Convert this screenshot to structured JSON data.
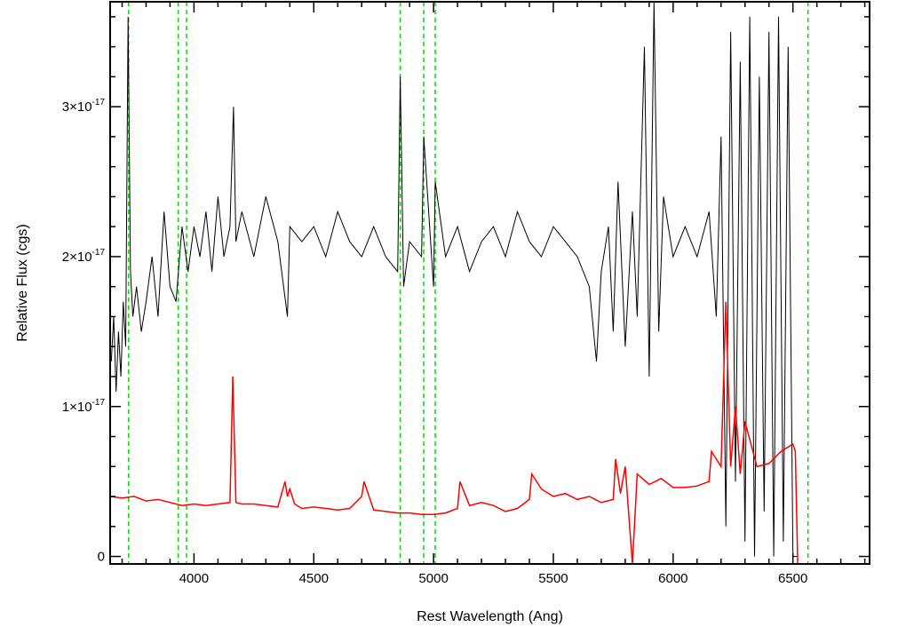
{
  "chart_data": {
    "type": "line",
    "title": "",
    "xlabel": "Rest Wavelength (Ang)",
    "ylabel": "Relative Flux (cgs)",
    "xlim": [
      3650,
      6820
    ],
    "ylim": [
      -5e-19,
      3.7e-17
    ],
    "x_ticks": [
      {
        "value": 4000,
        "label": "4000"
      },
      {
        "value": 4500,
        "label": "4500"
      },
      {
        "value": 5000,
        "label": "5000"
      },
      {
        "value": 5500,
        "label": "5500"
      },
      {
        "value": 6000,
        "label": "6000"
      },
      {
        "value": 6500,
        "label": "6500"
      }
    ],
    "y_ticks": [
      {
        "value": 0,
        "mantissa": "0",
        "exponent": ""
      },
      {
        "value": 1e-17,
        "mantissa": "1×10",
        "exponent": "-17"
      },
      {
        "value": 2e-17,
        "mantissa": "2×10",
        "exponent": "-17"
      },
      {
        "value": 3e-17,
        "mantissa": "3×10",
        "exponent": "-17"
      }
    ],
    "grid": false,
    "series": [
      {
        "color": "#000000",
        "x": [
          3655,
          3665,
          3675,
          3685,
          3695,
          3705,
          3715,
          3725,
          3735,
          3745,
          3760,
          3780,
          3800,
          3825,
          3850,
          3875,
          3900,
          3925,
          3950,
          3975,
          4000,
          4025,
          4050,
          4075,
          4100,
          4125,
          4150,
          4165,
          4175,
          4200,
          4250,
          4300,
          4350,
          4390,
          4400,
          4450,
          4500,
          4550,
          4600,
          4650,
          4700,
          4750,
          4800,
          4850,
          4861,
          4875,
          4900,
          4950,
          4959,
          5000,
          5007,
          5050,
          5100,
          5150,
          5200,
          5250,
          5300,
          5350,
          5400,
          5450,
          5500,
          5550,
          5600,
          5650,
          5680,
          5700,
          5730,
          5750,
          5770,
          5800,
          5830,
          5850,
          5880,
          5900,
          5920,
          5940,
          5960,
          6000,
          6050,
          6100,
          6150,
          6180,
          6200,
          6220,
          6240,
          6260,
          6280,
          6300,
          6320,
          6340,
          6360,
          6380,
          6400,
          6420,
          6440,
          6460,
          6480,
          6500,
          6520
        ],
        "y": [
          1.3e-17,
          1.6e-17,
          1.1e-17,
          1.5e-17,
          1.2e-17,
          1.7e-17,
          1.4e-17,
          3.6e-17,
          1.9e-17,
          1.6e-17,
          1.8e-17,
          1.5e-17,
          1.7e-17,
          2e-17,
          1.6e-17,
          2.3e-17,
          1.8e-17,
          1.7e-17,
          2.2e-17,
          1.9e-17,
          2.2e-17,
          2e-17,
          2.3e-17,
          1.9e-17,
          2.4e-17,
          2e-17,
          2.2e-17,
          3e-17,
          2.1e-17,
          2.3e-17,
          2e-17,
          2.4e-17,
          2.1e-17,
          1.6e-17,
          2.2e-17,
          2.1e-17,
          2.2e-17,
          2e-17,
          2.3e-17,
          2.1e-17,
          2e-17,
          2.2e-17,
          2e-17,
          1.9e-17,
          3.2e-17,
          1.8e-17,
          2.1e-17,
          2e-17,
          2.8e-17,
          1.8e-17,
          2.5e-17,
          2e-17,
          2.2e-17,
          1.9e-17,
          2.1e-17,
          2.2e-17,
          2e-17,
          2.3e-17,
          2.1e-17,
          2e-17,
          2.2e-17,
          2.1e-17,
          2e-17,
          1.8e-17,
          1.3e-17,
          1.9e-17,
          2.2e-17,
          1.5e-17,
          2.5e-17,
          1.4e-17,
          2.3e-17,
          1.6e-17,
          3.4e-17,
          1.2e-17,
          3.7e-17,
          1.5e-17,
          2.4e-17,
          2e-17,
          2.2e-17,
          2e-17,
          2.3e-17,
          1.6e-17,
          2.8e-17,
          2e-18,
          3.5e-17,
          5e-18,
          3.3e-17,
          1e-18,
          3.6e-17,
          0.0,
          3.2e-17,
          3e-18,
          3.5e-17,
          0.0,
          3.6e-17,
          1e-18,
          3.4e-17,
          0.0,
          0.0
        ]
      },
      {
        "color": "#ff0000",
        "x": [
          3650,
          3700,
          3750,
          3800,
          3850,
          3900,
          3950,
          4000,
          4050,
          4100,
          4150,
          4162,
          4175,
          4200,
          4250,
          4300,
          4350,
          4380,
          4390,
          4400,
          4420,
          4450,
          4500,
          4550,
          4600,
          4650,
          4700,
          4710,
          4750,
          4800,
          4850,
          4900,
          4950,
          5000,
          5050,
          5100,
          5110,
          5150,
          5200,
          5250,
          5300,
          5350,
          5400,
          5410,
          5450,
          5500,
          5550,
          5600,
          5650,
          5700,
          5750,
          5760,
          5780,
          5800,
          5830,
          5850,
          5900,
          5950,
          6000,
          6050,
          6100,
          6150,
          6160,
          6200,
          6220,
          6240,
          6260,
          6280,
          6300,
          6350,
          6400,
          6450,
          6500,
          6510,
          6520,
          6550,
          6600,
          6700,
          6820
        ],
        "y": [
          4e-18,
          3.9e-18,
          4e-18,
          3.7e-18,
          3.8e-18,
          3.6e-18,
          3.4e-18,
          3.5e-18,
          3.4e-18,
          3.5e-18,
          3.6e-18,
          1.2e-17,
          3.6e-18,
          3.5e-18,
          3.5e-18,
          3.4e-18,
          3.3e-18,
          5e-18,
          4e-18,
          4.5e-18,
          3.5e-18,
          3.2e-18,
          3.3e-18,
          3.2e-18,
          3.1e-18,
          3.2e-18,
          4e-18,
          5e-18,
          3.1e-18,
          3e-18,
          2.9e-18,
          2.9e-18,
          2.8e-18,
          2.8e-18,
          2.9e-18,
          3.2e-18,
          5e-18,
          3.4e-18,
          3.6e-18,
          3.4e-18,
          3e-18,
          3.2e-18,
          3.8e-18,
          5.5e-18,
          4.5e-18,
          4e-18,
          4.2e-18,
          3.8e-18,
          4e-18,
          3.6e-18,
          3.8e-18,
          6.5e-18,
          4.2e-18,
          6e-18,
          -5e-19,
          5.5e-18,
          4.8e-18,
          5.2e-18,
          4.6e-18,
          4.6e-18,
          4.7e-18,
          5e-18,
          7e-18,
          6e-18,
          1.7e-17,
          6e-18,
          1e-17,
          5.5e-18,
          9e-18,
          6e-18,
          6.2e-18,
          7e-18,
          7.5e-18,
          7e-18,
          -5e-19,
          -5e-19,
          -5e-19,
          -5e-19,
          -5e-19
        ]
      }
    ],
    "vertical_lines": {
      "color": "#00dd00",
      "style": "dashed",
      "x": [
        3727,
        3934,
        3969,
        4861,
        4959,
        5007,
        6563
      ]
    }
  }
}
